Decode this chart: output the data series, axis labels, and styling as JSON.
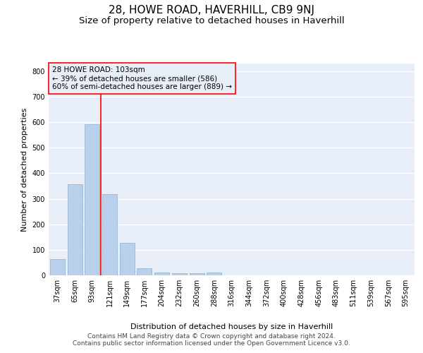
{
  "title": "28, HOWE ROAD, HAVERHILL, CB9 9NJ",
  "subtitle": "Size of property relative to detached houses in Haverhill",
  "xlabel": "Distribution of detached houses by size in Haverhill",
  "ylabel": "Number of detached properties",
  "categories": [
    "37sqm",
    "65sqm",
    "93sqm",
    "121sqm",
    "149sqm",
    "177sqm",
    "204sqm",
    "232sqm",
    "260sqm",
    "288sqm",
    "316sqm",
    "344sqm",
    "372sqm",
    "400sqm",
    "428sqm",
    "456sqm",
    "483sqm",
    "511sqm",
    "539sqm",
    "567sqm",
    "595sqm"
  ],
  "values": [
    65,
    358,
    593,
    318,
    128,
    27,
    10,
    7,
    7,
    10,
    0,
    0,
    0,
    0,
    0,
    0,
    0,
    0,
    0,
    0,
    0
  ],
  "bar_color": "#b8d0ea",
  "bar_edge_color": "#8ab0d0",
  "vline_x": 2.5,
  "vline_color": "red",
  "ylim": [
    0,
    830
  ],
  "yticks": [
    0,
    100,
    200,
    300,
    400,
    500,
    600,
    700,
    800
  ],
  "annotation_title": "28 HOWE ROAD: 103sqm",
  "annotation_line1": "← 39% of detached houses are smaller (586)",
  "annotation_line2": "60% of semi-detached houses are larger (889) →",
  "annotation_box_color": "red",
  "footer_line1": "Contains HM Land Registry data © Crown copyright and database right 2024.",
  "footer_line2": "Contains public sector information licensed under the Open Government Licence v3.0.",
  "plot_bg_color": "#e8eef8",
  "grid_color": "white",
  "title_fontsize": 11,
  "subtitle_fontsize": 9.5,
  "axis_label_fontsize": 8,
  "tick_fontsize": 7,
  "annotation_fontsize": 7.5,
  "footer_fontsize": 6.5
}
